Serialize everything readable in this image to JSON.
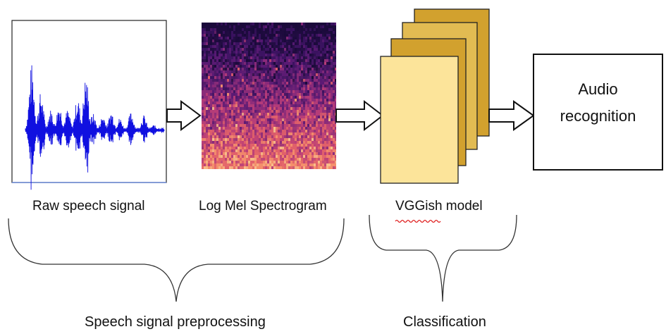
{
  "stages": {
    "raw": {
      "label": "Raw speech signal"
    },
    "spectrogram": {
      "label": "Log Mel Spectrogram"
    },
    "model": {
      "label": "VGGish model"
    },
    "output": {
      "line1": "Audio",
      "line2": "recognition"
    }
  },
  "groups": {
    "preprocessing": {
      "label": "Speech signal preprocessing"
    },
    "classification": {
      "label": "Classification"
    }
  },
  "colors": {
    "waveform": "#1010e0",
    "model_front": "#fce49a",
    "model_back": "#d2a12e",
    "spellcheck": "#e02020"
  }
}
